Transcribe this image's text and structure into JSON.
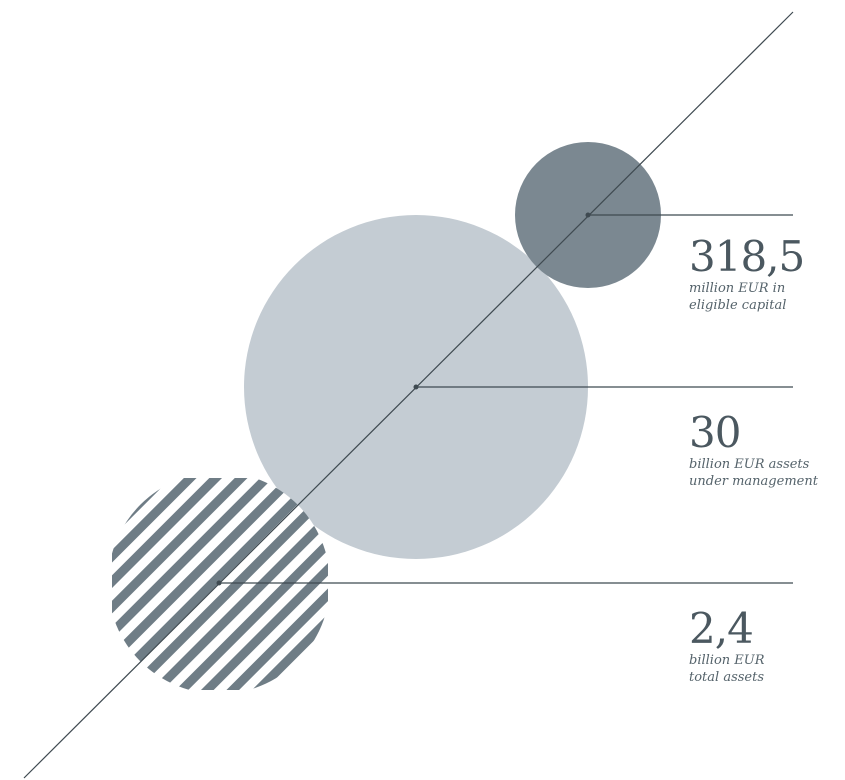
{
  "colors": {
    "small_circle": "#7b8891",
    "large_circle": "#c4ccd3",
    "striped_circle": "#6f7d86",
    "line": "#3f4a51",
    "text": "#4b5860"
  },
  "stats": [
    {
      "value": "318,5",
      "desc_line1": "million EUR in",
      "desc_line2": "eligible capital"
    },
    {
      "value": "30",
      "desc_line1": "billion EUR assets",
      "desc_line2": "under management"
    },
    {
      "value": "2,4",
      "desc_line1": "billion EUR",
      "desc_line2": "total assets"
    }
  ]
}
